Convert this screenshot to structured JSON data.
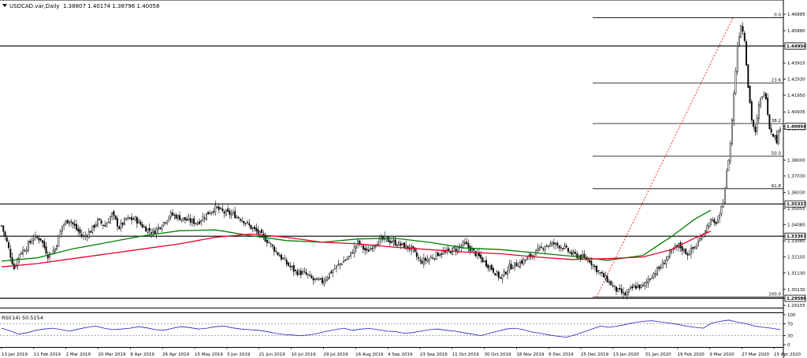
{
  "header": {
    "symbol": "USDCAD.var,Daily",
    "ohlc": "1.38807 1.40174 1.38796 1.40058"
  },
  "rsi_header": {
    "label": "RSI(14) 50.5154"
  },
  "colors": {
    "candle": "#000000",
    "ma_fast": "#008000",
    "ma_slow": "#e8002a",
    "fib_line": "#000000",
    "fib_trend": "#ff0000",
    "rsi_line": "#1f1fbf",
    "level_box_bg": "#ffffff"
  },
  "chart_data": [
    {
      "type": "candlestick",
      "title": "USDCAD.var,Daily",
      "price_axis_ticks": [
        "1.46885",
        "1.45880",
        "1.44950",
        "1.43915",
        "1.42930",
        "1.41950",
        "1.40935",
        "1.40058",
        "1.39905",
        "1.38000",
        "1.37030",
        "1.36030",
        "1.35333",
        "1.35055",
        "1.34080",
        "1.33367",
        "1.33080",
        "1.32105",
        "1.31130",
        "1.30130",
        "1.29586",
        "1.29155"
      ],
      "ylim": [
        1.2916,
        1.4708
      ],
      "x_tick_labels": [
        "13 Jan 2019",
        "11 Feb 2019",
        "1 Mar 2019",
        "20 Mar 2019",
        "8 Apr 2019",
        "26 Apr 2019",
        "15 May 2019",
        "3 Jun 2019",
        "21 Jun 2019",
        "10 Jul 2019",
        "29 Jul 2019",
        "16 Aug 2019",
        "4 Sep 2019",
        "23 Sep 2019",
        "11 Oct 2019",
        "30 Oct 2019",
        "18 Nov 2019",
        "6 Dec 2019",
        "25 Dec 2019",
        "13 Jan 2020",
        "31 Jan 2020",
        "19 Feb 2020",
        "9 Mar 2020",
        "27 Mar 2020",
        "15 Apr 2020"
      ],
      "horizontal_levels": [
        {
          "label": "1.44950",
          "value": 1.4495
        },
        {
          "label": "1.35333",
          "value": 1.35333
        },
        {
          "label": "1.33367",
          "value": 1.33367
        },
        {
          "label": "1.29586",
          "value": 1.29586
        }
      ],
      "current_price": {
        "label": "1.40058",
        "value": 1.40058
      },
      "fibonacci": {
        "levels": [
          {
            "label": "0.0",
            "value": 1.4667
          },
          {
            "label": "23.6",
            "value": 1.4269
          },
          {
            "label": "38.2",
            "value": 1.4023
          },
          {
            "label": "50.0",
            "value": 1.3825
          },
          {
            "label": "61.8",
            "value": 1.3626
          },
          {
            "label": "100.0",
            "value": 1.2967
          }
        ],
        "swing_low": {
          "date": "30 Dec 2019",
          "value": 1.2967
        },
        "swing_high": {
          "date": "19 Mar 2020",
          "value": 1.4667
        }
      },
      "series": [
        {
          "kind": "moving_average",
          "points": [
            [
              0,
              1.3185
            ],
            [
              20,
              1.3205
            ],
            [
              40,
              1.326
            ],
            [
              60,
              1.33
            ],
            [
              80,
              1.334
            ],
            [
              100,
              1.337
            ],
            [
              120,
              1.3375
            ],
            [
              140,
              1.334
            ],
            [
              160,
              1.331
            ],
            [
              180,
              1.33
            ],
            [
              200,
              1.332
            ],
            [
              220,
              1.3325
            ],
            [
              240,
              1.33
            ],
            [
              260,
              1.3265
            ],
            [
              280,
              1.3255
            ],
            [
              300,
              1.3235
            ],
            [
              320,
              1.3215
            ],
            [
              340,
              1.319
            ],
            [
              360,
              1.322
            ],
            [
              376,
              1.3335
            ],
            [
              389,
              1.344
            ],
            [
              398,
              1.3495
            ]
          ]
        },
        {
          "kind": "moving_average",
          "points": [
            [
              0,
              1.315
            ],
            [
              20,
              1.317
            ],
            [
              40,
              1.32
            ],
            [
              60,
              1.323
            ],
            [
              80,
              1.326
            ],
            [
              100,
              1.329
            ],
            [
              120,
              1.333
            ],
            [
              140,
              1.335
            ],
            [
              160,
              1.333
            ],
            [
              180,
              1.33
            ],
            [
              200,
              1.329
            ],
            [
              220,
              1.327
            ],
            [
              240,
              1.3255
            ],
            [
              260,
              1.324
            ],
            [
              280,
              1.323
            ],
            [
              300,
              1.321
            ],
            [
              320,
              1.3195
            ],
            [
              340,
              1.32
            ],
            [
              360,
              1.321
            ],
            [
              376,
              1.3255
            ],
            [
              389,
              1.3325
            ],
            [
              398,
              1.3367
            ]
          ]
        }
      ],
      "closes_by_day": [
        [
          0,
          1.34
        ],
        [
          3,
          1.33
        ],
        [
          7,
          1.314
        ],
        [
          10,
          1.323
        ],
        [
          14,
          1.327
        ],
        [
          18,
          1.333
        ],
        [
          22,
          1.332
        ],
        [
          26,
          1.322
        ],
        [
          30,
          1.326
        ],
        [
          34,
          1.34
        ],
        [
          38,
          1.344
        ],
        [
          42,
          1.338
        ],
        [
          46,
          1.333
        ],
        [
          50,
          1.337
        ],
        [
          54,
          1.343
        ],
        [
          58,
          1.34
        ],
        [
          62,
          1.347
        ],
        [
          66,
          1.339
        ],
        [
          70,
          1.344
        ],
        [
          75,
          1.344
        ],
        [
          80,
          1.339
        ],
        [
          85,
          1.336
        ],
        [
          90,
          1.341
        ],
        [
          95,
          1.347
        ],
        [
          100,
          1.345
        ],
        [
          105,
          1.343
        ],
        [
          110,
          1.342
        ],
        [
          115,
          1.347
        ],
        [
          120,
          1.351
        ],
        [
          125,
          1.348
        ],
        [
          130,
          1.347
        ],
        [
          135,
          1.344
        ],
        [
          140,
          1.339
        ],
        [
          145,
          1.335
        ],
        [
          150,
          1.33
        ],
        [
          155,
          1.323
        ],
        [
          160,
          1.317
        ],
        [
          165,
          1.312
        ],
        [
          170,
          1.311
        ],
        [
          175,
          1.307
        ],
        [
          180,
          1.306
        ],
        [
          185,
          1.312
        ],
        [
          190,
          1.317
        ],
        [
          195,
          1.321
        ],
        [
          200,
          1.33
        ],
        [
          205,
          1.324
        ],
        [
          210,
          1.33
        ],
        [
          215,
          1.332
        ],
        [
          220,
          1.33
        ],
        [
          225,
          1.328
        ],
        [
          230,
          1.326
        ],
        [
          235,
          1.318
        ],
        [
          240,
          1.32
        ],
        [
          245,
          1.323
        ],
        [
          250,
          1.324
        ],
        [
          255,
          1.326
        ],
        [
          260,
          1.329
        ],
        [
          265,
          1.324
        ],
        [
          270,
          1.319
        ],
        [
          275,
          1.314
        ],
        [
          280,
          1.308
        ],
        [
          285,
          1.315
        ],
        [
          290,
          1.317
        ],
        [
          295,
          1.32
        ],
        [
          300,
          1.324
        ],
        [
          305,
          1.328
        ],
        [
          310,
          1.329
        ],
        [
          315,
          1.327
        ],
        [
          320,
          1.323
        ],
        [
          325,
          1.321
        ],
        [
          330,
          1.319
        ],
        [
          335,
          1.312
        ],
        [
          340,
          1.307
        ],
        [
          345,
          1.301
        ],
        [
          350,
          1.298
        ],
        [
          355,
          1.303
        ],
        [
          360,
          1.303
        ],
        [
          365,
          1.31
        ],
        [
          370,
          1.315
        ],
        [
          375,
          1.323
        ],
        [
          380,
          1.328
        ],
        [
          385,
          1.323
        ],
        [
          390,
          1.328
        ],
        [
          395,
          1.338
        ],
        [
          398,
          1.343
        ],
        [
          400,
          1.341
        ],
        [
          403,
          1.345
        ],
        [
          405,
          1.3555
        ],
        [
          407,
          1.372
        ],
        [
          409,
          1.39
        ],
        [
          411,
          1.42
        ],
        [
          413,
          1.45
        ],
        [
          415,
          1.463
        ],
        [
          417,
          1.454
        ],
        [
          419,
          1.425
        ],
        [
          421,
          1.405
        ],
        [
          423,
          1.396
        ],
        [
          425,
          1.413
        ],
        [
          427,
          1.42
        ],
        [
          429,
          1.419
        ],
        [
          431,
          1.4
        ],
        [
          433,
          1.396
        ],
        [
          435,
          1.392
        ],
        [
          437,
          1.4006
        ]
      ],
      "xlabel": "",
      "ylabel": ""
    },
    {
      "type": "line",
      "title": "RSI(14) 50.5154",
      "ylim": [
        0,
        100
      ],
      "y_tick_labels": [
        "100",
        "70",
        "30",
        "0"
      ],
      "reference_lines": [
        70,
        30
      ],
      "values": [
        55,
        46,
        35,
        40,
        48,
        52,
        55,
        50,
        45,
        52,
        58,
        62,
        55,
        50,
        52,
        55,
        60,
        56,
        50,
        48,
        55,
        60,
        57,
        52,
        55,
        60,
        62,
        56,
        52,
        50,
        48,
        44,
        38,
        34,
        32,
        30,
        33,
        38,
        45,
        50,
        55,
        48,
        52,
        54,
        50,
        45,
        44,
        38,
        40,
        45,
        50,
        52,
        48,
        45,
        40,
        35,
        30,
        38,
        45,
        52,
        55,
        50,
        42,
        38,
        32,
        28,
        25,
        32,
        42,
        52,
        62,
        58,
        62,
        68,
        74,
        78,
        80,
        76,
        72,
        68,
        62,
        58,
        55,
        72,
        78,
        82,
        75,
        70,
        62,
        58,
        55,
        50
      ]
    }
  ]
}
